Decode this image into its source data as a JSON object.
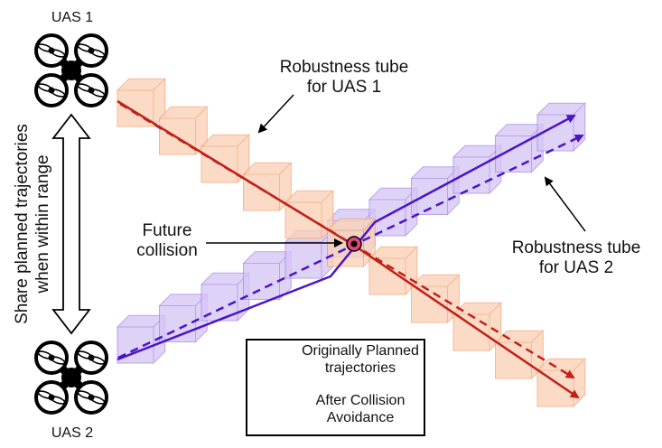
{
  "uas1": {
    "label": "UAS 1"
  },
  "uas2": {
    "label": "UAS 2"
  },
  "share": {
    "line1": "Share planned trajectories",
    "line2": "when within range"
  },
  "tube1": {
    "line1": "Robustness tube",
    "line2": "for UAS 1"
  },
  "tube2": {
    "line1": "Robustness tube",
    "line2": "for UAS 2"
  },
  "collision": {
    "line1": "Future",
    "line2": "collision"
  },
  "legend": {
    "planned_line1": "Originally Planned",
    "planned_line2": "trajectories",
    "avoid_line1": "After Collision",
    "avoid_line2": "Avoidance"
  },
  "colors": {
    "uas1_path": "#c0201a",
    "uas2_path": "#4a14c8",
    "tube1_fill": "#fbd2b6",
    "tube1_edge": "#f1a57a",
    "tube2_fill": "#d6c6f6",
    "tube2_edge": "#a98ae6",
    "collision_marker": "#e0447a"
  },
  "icons": [
    "drone-icon",
    "double-arrow-icon",
    "arrow-icon"
  ]
}
